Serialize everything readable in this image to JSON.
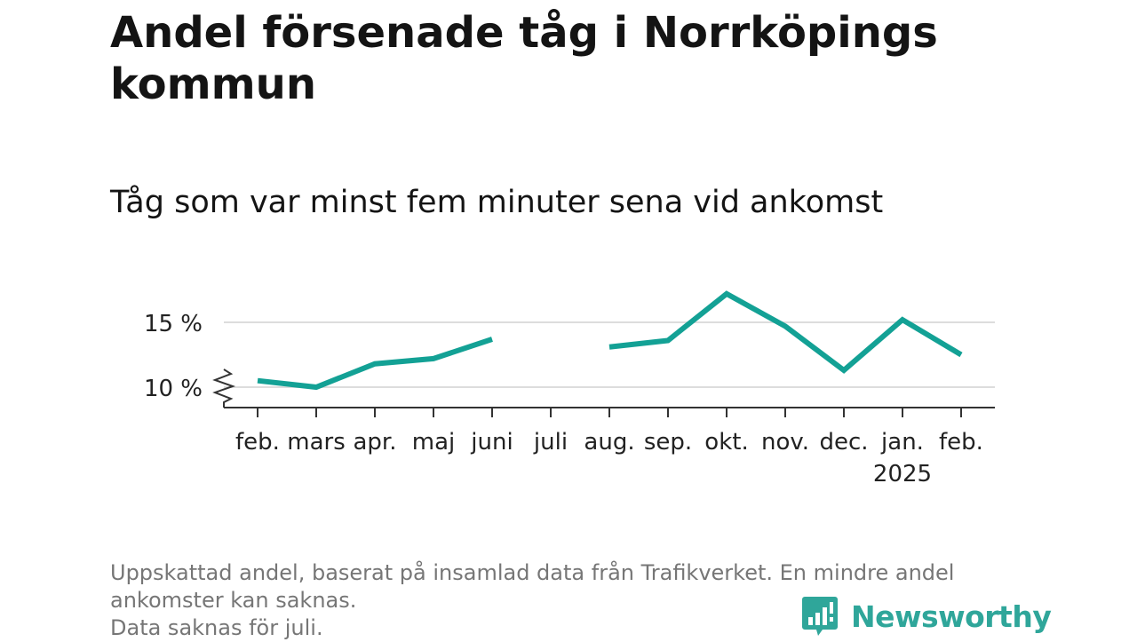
{
  "title": "Andel försenade tåg i Norrköpings kommun",
  "subtitle": "Tåg som var minst fem minuter sena vid ankomst",
  "chart_data": {
    "type": "line",
    "categories": [
      "feb.",
      "mars",
      "apr.",
      "maj",
      "juni",
      "juli",
      "aug.",
      "sep.",
      "okt.",
      "nov.",
      "dec.",
      "jan.",
      "feb."
    ],
    "year_label": {
      "text": "2025",
      "under_category_index": 11
    },
    "series": [
      {
        "values": [
          10.5,
          10.0,
          11.8,
          12.2,
          13.7,
          null,
          13.1,
          13.6,
          17.2,
          14.7,
          11.3,
          15.2,
          12.5
        ],
        "color": "#13a195"
      }
    ],
    "yticks": [
      10,
      15
    ],
    "ytick_labels": [
      "10 %",
      "15 %"
    ],
    "ylim": [
      8.5,
      17.5
    ],
    "axis_break": true,
    "grid": true
  },
  "notes": [
    "Uppskattad andel, baserat på insamlad data från Trafikverket. En mindre andel ankomster kan saknas.",
    "Data saknas för juli."
  ],
  "brand": {
    "name": "Newsworthy",
    "color": "#2fa69a",
    "icon": "bar-chart-speech-bubble-icon"
  }
}
